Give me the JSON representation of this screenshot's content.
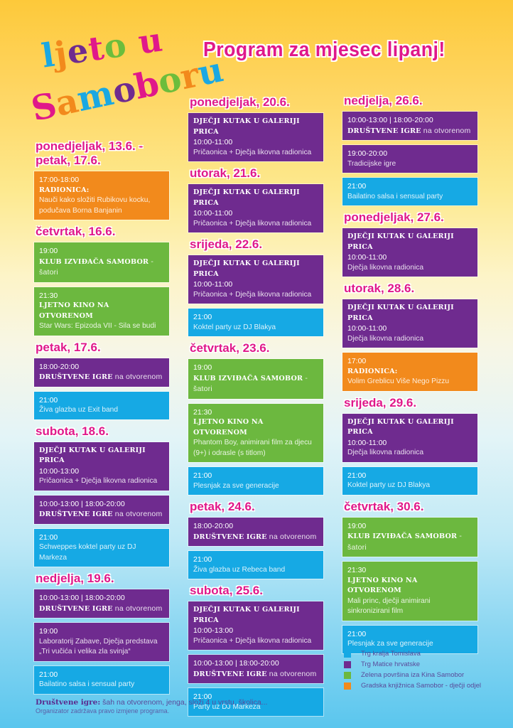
{
  "logo": {
    "line1": [
      {
        "text": "l",
        "color": "blue"
      },
      {
        "text": "j",
        "color": "orange"
      },
      {
        "text": "e",
        "color": "purple"
      },
      {
        "text": "t",
        "color": "pink"
      },
      {
        "text": "o",
        "color": "green"
      },
      {
        "text": " ",
        "color": "pink"
      },
      {
        "text": "u",
        "color": "pink"
      }
    ],
    "line2": [
      {
        "text": "S",
        "color": "pink"
      },
      {
        "text": "a",
        "color": "orange"
      },
      {
        "text": "m",
        "color": "blue"
      },
      {
        "text": "o",
        "color": "purple"
      },
      {
        "text": "b",
        "color": "pink"
      },
      {
        "text": "o",
        "color": "green"
      },
      {
        "text": "r",
        "color": "orange"
      },
      {
        "text": "u",
        "color": "blue"
      }
    ]
  },
  "title": "Program za mjesec lipanj!",
  "columns": [
    {
      "days": [
        {
          "label": "ponedjeljak, 13.6. - petak, 17.6.",
          "events": [
            {
              "color": "orange",
              "time": "17:00-18:00",
              "head": "RADIONICA:",
              "desc": "Nauči kako složiti Rubikovu kocku, podučava Borna Banjanin"
            }
          ]
        },
        {
          "label": "četvrtak, 16.6.",
          "events": [
            {
              "color": "green",
              "time": "19:00",
              "head": "KLUB IZVIĐAČA SAMOBOR",
              "inline": " - šatori"
            },
            {
              "color": "green",
              "time": "21:30",
              "head": "LJETNO KINO NA OTVORENOM",
              "desc": "Star Wars: Epizoda VII - Sila se budi"
            }
          ]
        },
        {
          "label": "petak, 17.6.",
          "events": [
            {
              "color": "purple",
              "time": "18:00-20:00",
              "head": "DRUŠTVENE IGRE",
              "inline": " na otvorenom"
            },
            {
              "color": "blue",
              "time": "21:00",
              "desc": "Živa glazba uz Exit band"
            }
          ]
        },
        {
          "label": "subota, 18.6.",
          "events": [
            {
              "color": "purple",
              "head_first": "DJEČJI KUTAK U GALERIJI PRICA",
              "time": "10:00-13:00",
              "desc": "Pričaonica + Dječja likovna radionica"
            },
            {
              "color": "purple",
              "time": "10:00-13:00 | 18:00-20:00",
              "head": "DRUŠTVENE IGRE",
              "inline": " na otvorenom"
            },
            {
              "color": "blue",
              "time": "21:00",
              "desc": "Schweppes koktel party uz DJ Markeza"
            }
          ]
        },
        {
          "label": "nedjelja, 19.6.",
          "events": [
            {
              "color": "purple",
              "time": "10:00-13:00 | 18:00-20:00",
              "head": "DRUŠTVENE IGRE",
              "inline": " na otvorenom"
            },
            {
              "color": "purple",
              "time": "19:00",
              "desc": "Laboratorij Zabave, Dječja predstava „Tri vučića i velika zla svinja“"
            },
            {
              "color": "blue",
              "time": "21:00",
              "desc": "Bailatino salsa i sensual party"
            }
          ]
        }
      ]
    },
    {
      "days": [
        {
          "label": "ponedjeljak, 20.6.",
          "events": [
            {
              "color": "purple",
              "head_first": "DJEČJI KUTAK U GALERIJI PRICA",
              "time": "10:00-11:00",
              "desc": "Pričaonica + Dječja likovna radionica"
            }
          ]
        },
        {
          "label": "utorak, 21.6.",
          "events": [
            {
              "color": "purple",
              "head_first": "DJEČJI KUTAK U GALERIJI PRICA",
              "time": "10:00-11:00",
              "desc": "Pričaonica + Dječja likovna radionica"
            }
          ]
        },
        {
          "label": "srijeda, 22.6.",
          "events": [
            {
              "color": "purple",
              "head_first": "DJEČJI KUTAK U GALERIJI PRICA",
              "time": "10:00-11:00",
              "desc": "Pričaonica + Dječja likovna radionica"
            },
            {
              "color": "blue",
              "time": "21:00",
              "desc": "Koktel party uz DJ Blakya"
            }
          ]
        },
        {
          "label": "četvrtak, 23.6.",
          "events": [
            {
              "color": "green",
              "time": "19:00",
              "head": "KLUB IZVIĐAČA SAMOBOR",
              "inline": " - šatori"
            },
            {
              "color": "green",
              "time": "21:30",
              "head": "LJETNO KINO NA OTVORENOM",
              "desc": "Phantom Boy, animirani film za djecu (9+) i odrasle (s titlom)"
            },
            {
              "color": "blue",
              "time": "21:00",
              "desc": "Plesnjak za sve generacije"
            }
          ]
        },
        {
          "label": "petak, 24.6.",
          "events": [
            {
              "color": "purple",
              "time": "18:00-20:00",
              "head": "DRUŠTVENE IGRE",
              "inline": " na otvorenom"
            },
            {
              "color": "blue",
              "time": "21:00",
              "desc": "Živa glazba uz Rebeca band"
            }
          ]
        },
        {
          "label": "subota, 25.6.",
          "events": [
            {
              "color": "purple",
              "head_first": "DJEČJI KUTAK U GALERIJI PRICA",
              "time": "10:00-13:00",
              "desc": "Pričaonica + Dječja likovna radionica"
            },
            {
              "color": "purple",
              "time": "10:00-13:00 | 18:00-20:00",
              "head": "DRUŠTVENE IGRE",
              "inline": " na otvorenom"
            },
            {
              "color": "blue",
              "time": "21:00",
              "desc": "Party uz DJ Markeza"
            }
          ]
        }
      ]
    },
    {
      "days": [
        {
          "label": "nedjelja, 26.6.",
          "events": [
            {
              "color": "purple",
              "time": "10:00-13:00 | 18:00-20:00",
              "head": "DRUŠTVENE IGRE",
              "inline": " na otvorenom"
            },
            {
              "color": "purple",
              "time": "19:00-20:00",
              "desc": "Tradicijske igre"
            },
            {
              "color": "blue",
              "time": "21:00",
              "desc": "Bailatino salsa i sensual party"
            }
          ]
        },
        {
          "label": "ponedjeljak, 27.6.",
          "events": [
            {
              "color": "purple",
              "head_first": "DJEČJI KUTAK U GALERIJI PRICA",
              "time": "10:00-11:00",
              "desc": "Dječja likovna radionica"
            }
          ]
        },
        {
          "label": "utorak, 28.6.",
          "events": [
            {
              "color": "purple",
              "head_first": "DJEČJI KUTAK U GALERIJI PRICA",
              "time": "10:00-11:00",
              "desc": "Dječja likovna radionica"
            },
            {
              "color": "orange",
              "time": "17:00",
              "head": "RADIONICA:",
              "desc": "Volim Greblicu Više Nego Pizzu"
            }
          ]
        },
        {
          "label": "srijeda, 29.6.",
          "events": [
            {
              "color": "purple",
              "head_first": "DJEČJI KUTAK U GALERIJI PRICA",
              "time": "10:00-11:00",
              "desc": "Dječja likovna radionica"
            },
            {
              "color": "blue",
              "time": "21:00",
              "desc": "Koktel party uz DJ Blakya"
            }
          ]
        },
        {
          "label": "četvrtak, 30.6.",
          "events": [
            {
              "color": "green",
              "time": "19:00",
              "head": "KLUB IZVIĐAČA SAMOBOR",
              "inline": " - šatori"
            },
            {
              "color": "green",
              "time": "21:30",
              "head": "LJETNO KINO NA OTVORENOM",
              "desc": "Mali princ, dječji animirani sinkronizirani film"
            },
            {
              "color": "blue",
              "time": "21:00",
              "desc": "Plesnjak za sve generacije"
            }
          ]
        }
      ]
    }
  ],
  "legend": [
    {
      "color": "#16a9e4",
      "label": "Trg kralja Tomislava"
    },
    {
      "color": "#6f2b8f",
      "label": "Trg Matice hrvatske"
    },
    {
      "color": "#6cb83f",
      "label": "Zelena površina iza Kina Samobor"
    },
    {
      "color": "#f28a1c",
      "label": "Gradska knjižnica Samobor - dječji odjel"
    }
  ],
  "footer": {
    "label": "Društvene igre:",
    "text": " šah na otvorenom, jenga, složi 4 u vrstu, školica...",
    "note": "Organizator zadržava pravo izmjene programa."
  },
  "colors": {
    "purple": "#6f2b8f",
    "blue": "#16a9e4",
    "green": "#6cb83f",
    "orange": "#f28a1c",
    "pink": "#e0188a"
  }
}
